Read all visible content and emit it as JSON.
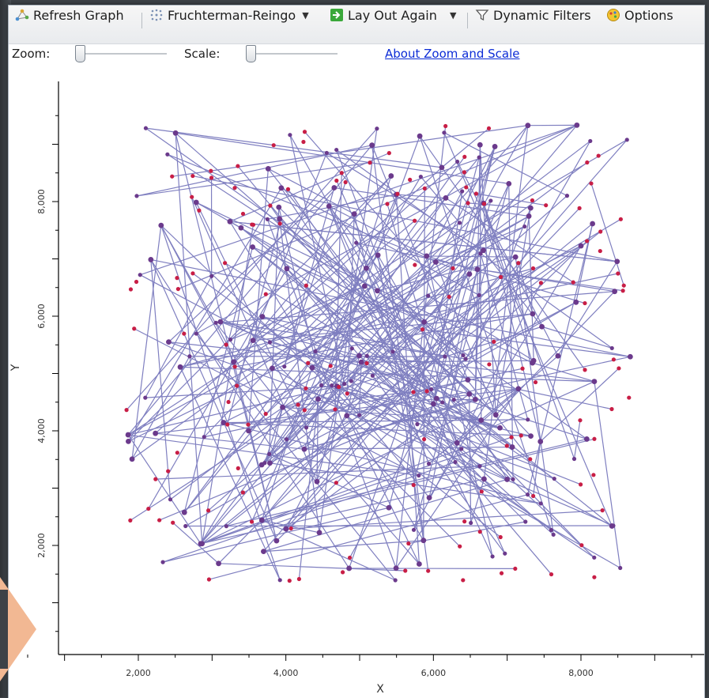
{
  "toolbar": {
    "refresh_label": "Refresh Graph",
    "layout_label": "Fruchterman-Reingo",
    "layout_again_label": "Lay Out Again",
    "filters_label": "Dynamic Filters",
    "options_label": "Options"
  },
  "zoom_bar": {
    "zoom_label": "Zoom:",
    "scale_label": "Scale:",
    "zoom_level": 0,
    "scale_level": 0,
    "about_link": "About Zoom and Scale"
  },
  "colors": {
    "edge": "#7f7fc0",
    "node_red": "#c81e46",
    "node_purple": "#6b3a8c",
    "link": "#0b2bd6",
    "arrow": "#f2b893"
  },
  "chart_data": {
    "type": "scatter",
    "title": "",
    "xlabel": "X",
    "ylabel": "Y",
    "xlim": [
      0,
      10000
    ],
    "ylim": [
      0,
      10000
    ],
    "x_ticks": [
      "2,000",
      "4,000",
      "6,000",
      "8,000"
    ],
    "y_ticks": [
      "2,000",
      "4,000",
      "6,000",
      "8,000"
    ],
    "nodes_approx": 330,
    "edges_approx": 330
  }
}
